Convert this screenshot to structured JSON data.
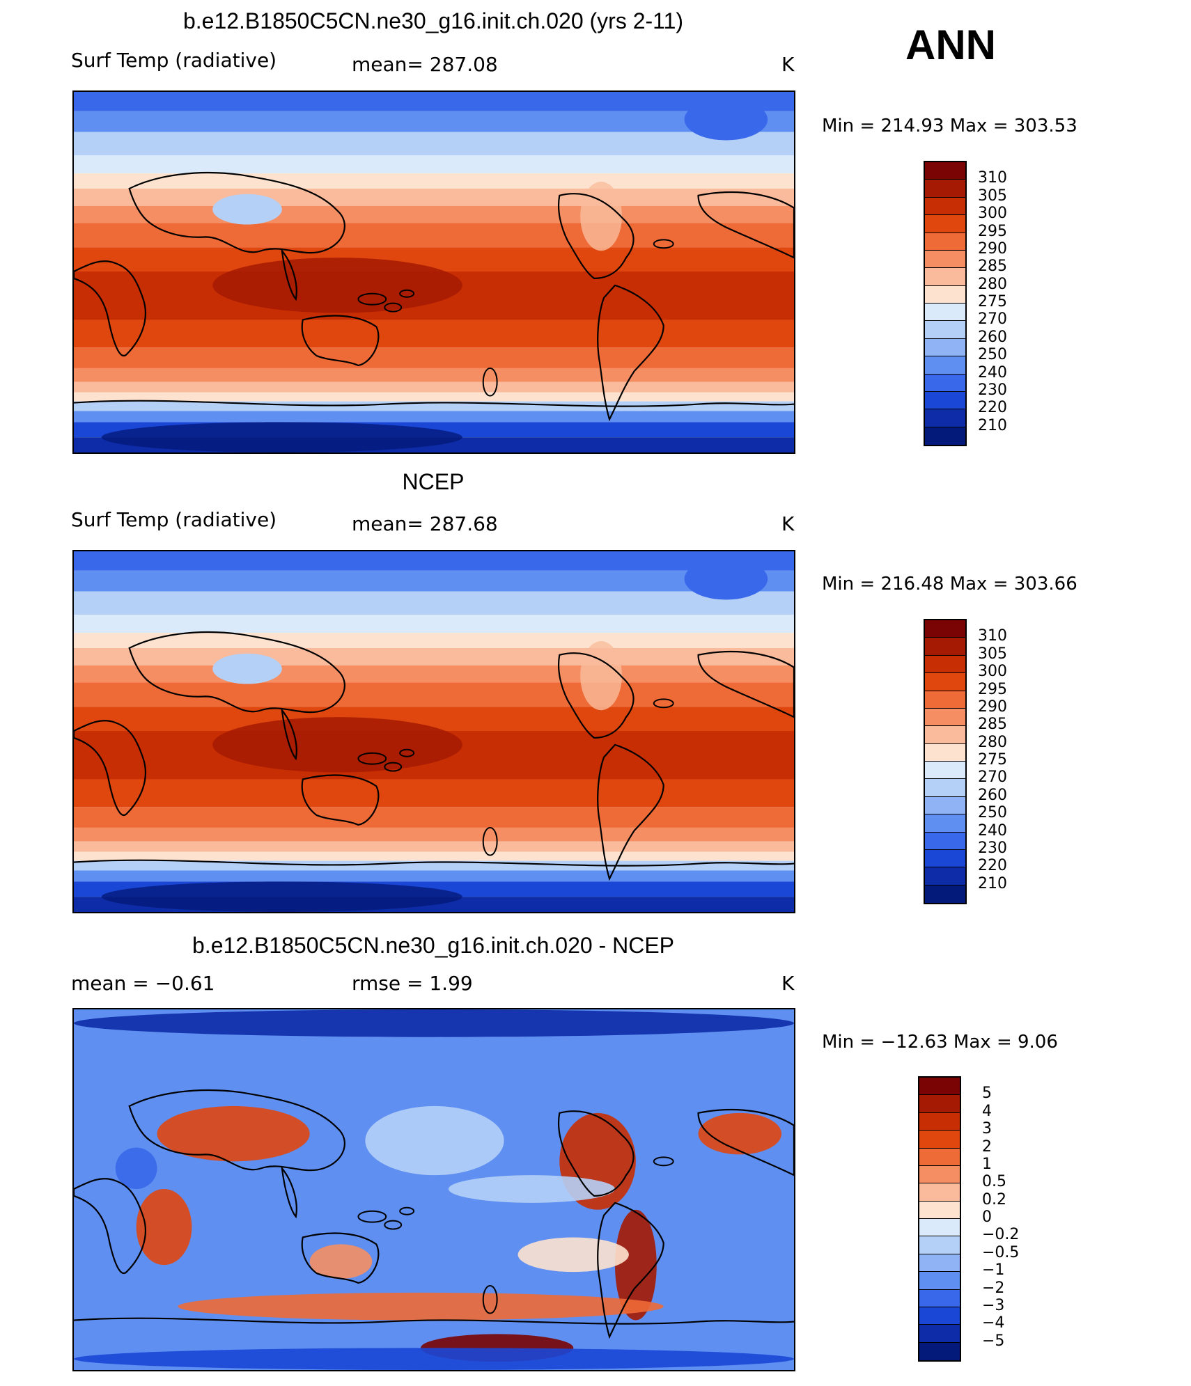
{
  "header": {
    "ann": "ANN"
  },
  "panels": [
    {
      "title": "b.e12.B1850C5CN.ne30_g16.init.ch.020 (yrs 2-11)",
      "left_label": "Surf Temp (radiative)",
      "mid_label": "mean=  287.08",
      "units": "K",
      "minmax": "Min  =  214.93  Max  =  303.53",
      "colorbar": {
        "labels": [
          "310",
          "305",
          "300",
          "295",
          "290",
          "285",
          "280",
          "275",
          "270",
          "260",
          "250",
          "240",
          "230",
          "220",
          "210"
        ],
        "colors": [
          "#7a0403",
          "#a51a02",
          "#c82e03",
          "#e0470f",
          "#ee6a36",
          "#f58f63",
          "#f9bb9b",
          "#fde3cf",
          "#dbeafa",
          "#b5d0f7",
          "#8fb3f4",
          "#5f8ff0",
          "#3a68ea",
          "#1b47d6",
          "#0e2ca7",
          "#041a7a"
        ]
      },
      "map": {
        "kind": "abs"
      }
    },
    {
      "title": "NCEP",
      "left_label": "Surf Temp (radiative)",
      "mid_label": "mean=  287.68",
      "units": "K",
      "minmax": "Min  =  216.48  Max  =  303.66",
      "colorbar": {
        "labels": [
          "310",
          "305",
          "300",
          "295",
          "290",
          "285",
          "280",
          "275",
          "270",
          "260",
          "250",
          "240",
          "230",
          "220",
          "210"
        ],
        "colors": [
          "#7a0403",
          "#a51a02",
          "#c82e03",
          "#e0470f",
          "#ee6a36",
          "#f58f63",
          "#f9bb9b",
          "#fde3cf",
          "#dbeafa",
          "#b5d0f7",
          "#8fb3f4",
          "#5f8ff0",
          "#3a68ea",
          "#1b47d6",
          "#0e2ca7",
          "#041a7a"
        ]
      },
      "map": {
        "kind": "abs"
      }
    },
    {
      "title": "b.e12.B1850C5CN.ne30_g16.init.ch.020 - NCEP",
      "left_label": "mean =     −0.61",
      "mid_label": "rmse =     1.99",
      "units": "K",
      "minmax": "Min  =  −12.63  Max  =      9.06",
      "colorbar": {
        "labels": [
          "5",
          "4",
          "3",
          "2",
          "1",
          "0.5",
          "0.2",
          "0",
          "−0.2",
          "−0.5",
          "−1",
          "−2",
          "−3",
          "−4",
          "−5"
        ],
        "colors": [
          "#7a0403",
          "#a51a02",
          "#c82e03",
          "#e0470f",
          "#ee6a36",
          "#f58f63",
          "#f9bb9b",
          "#fde3cf",
          "#dbeafa",
          "#b5d0f7",
          "#8fb3f4",
          "#5f8ff0",
          "#3a68ea",
          "#1b47d6",
          "#0e2ca7",
          "#041a7a"
        ]
      },
      "map": {
        "kind": "diff"
      }
    }
  ]
}
